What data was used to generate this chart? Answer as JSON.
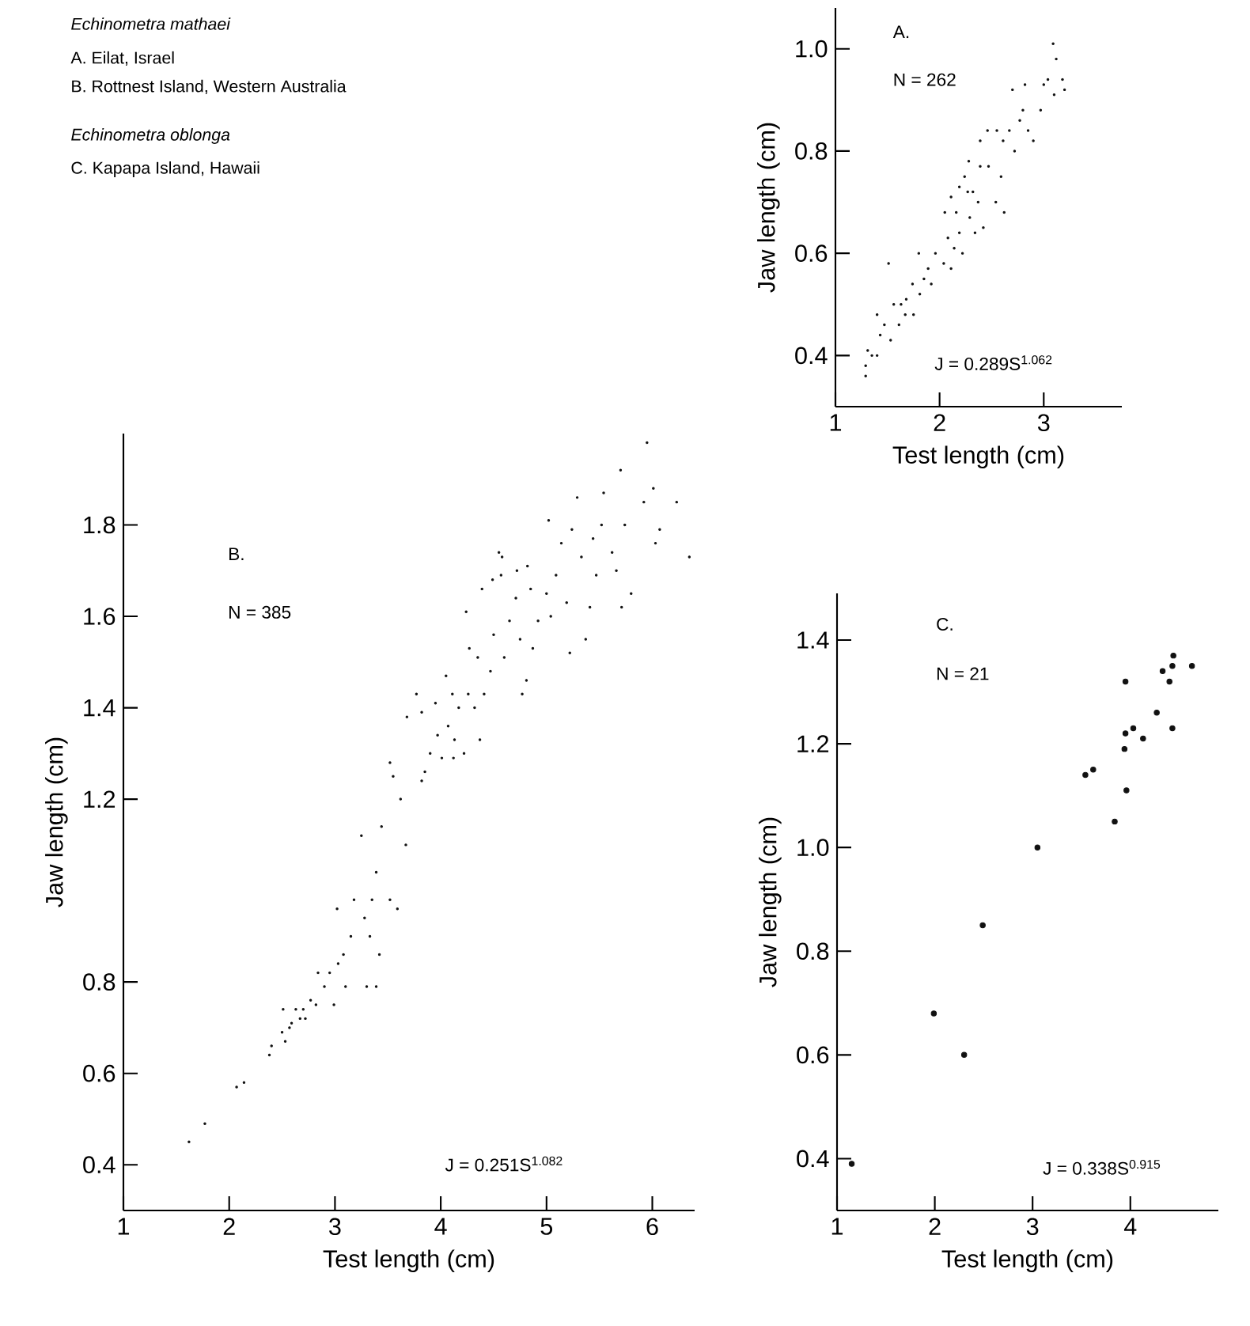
{
  "chart_data": [
    {
      "type": "other",
      "annotations": [
        "Echinometra mathaei",
        "A. Eilat, Israel",
        "B. Rottnest Island, Western Australia",
        "Echinometra oblonga",
        "C. Kapapa Island, Hawaii"
      ]
    },
    {
      "type": "scatter",
      "title": "A.",
      "xlabel": "Test length (cm)",
      "ylabel": "Jaw length (cm)",
      "annotations": [
        "N = 262",
        "J = 0.289S$^{1.062}$"
      ],
      "marker": "circle",
      "xlim": [
        1,
        3.75
      ],
      "ylim": [
        0.3,
        1.08
      ],
      "xticks": [
        1,
        2,
        3
      ],
      "yticks": [
        0.4,
        0.6,
        0.8,
        {
          "value": 1,
          "label": "1.0"
        }
      ],
      "x": [
        1.29,
        1.29,
        1.31,
        1.35,
        1.4,
        1.4,
        1.43,
        1.47,
        1.53,
        1.51,
        1.56,
        1.61,
        1.63,
        1.68,
        1.67,
        1.74,
        1.75,
        1.8,
        1.81,
        1.85,
        1.89,
        1.92,
        1.96,
        2.04,
        2.05,
        2.08,
        2.11,
        2.11,
        2.14,
        2.16,
        2.19,
        2.19,
        2.22,
        2.24,
        2.27,
        2.28,
        2.29,
        2.32,
        2.34,
        2.37,
        2.39,
        2.39,
        2.42,
        2.46,
        2.47,
        2.54,
        2.55,
        2.59,
        2.61,
        2.62,
        2.67,
        2.7,
        2.72,
        2.77,
        2.8,
        2.82,
        2.85,
        2.9,
        2.97,
        3.0,
        3.04,
        3.09,
        3.12,
        3.1,
        3.18,
        3.2
      ],
      "series": [
        {
          "color": "#111111",
          "values": [
            0.36,
            0.38,
            0.41,
            0.4,
            0.4,
            0.48,
            0.44,
            0.46,
            0.43,
            0.58,
            0.5,
            0.46,
            0.5,
            0.51,
            0.48,
            0.54,
            0.48,
            0.6,
            0.52,
            0.55,
            0.57,
            0.54,
            0.6,
            0.58,
            0.68,
            0.63,
            0.57,
            0.71,
            0.61,
            0.68,
            0.73,
            0.64,
            0.6,
            0.75,
            0.72,
            0.78,
            0.67,
            0.72,
            0.64,
            0.7,
            0.77,
            0.82,
            0.65,
            0.84,
            0.77,
            0.7,
            0.84,
            0.75,
            0.82,
            0.68,
            0.84,
            0.92,
            0.8,
            0.86,
            0.88,
            0.93,
            0.84,
            0.82,
            0.88,
            0.93,
            0.94,
            1.01,
            0.98,
            0.91,
            0.94,
            0.92
          ]
        }
      ]
    },
    {
      "type": "scatter",
      "title": "B.",
      "xlabel": "Test length (cm)",
      "ylabel": "Jaw length (cm)",
      "annotations": [
        "N = 385",
        "J = 0.251S$^{1.082}$"
      ],
      "marker": "circle",
      "xlim": [
        1,
        6.4
      ],
      "ylim": [
        0.3,
        2.0
      ],
      "xticks": [
        1,
        2,
        3,
        4,
        5,
        6
      ],
      "yticks": [
        0.4,
        0.6,
        0.8,
        1.2,
        1.4,
        1.6,
        1.8
      ],
      "x": [
        1.62,
        1.77,
        2.07,
        2.14,
        2.38,
        2.4,
        2.5,
        2.53,
        2.51,
        2.57,
        2.59,
        2.63,
        2.67,
        2.7,
        2.72,
        2.77,
        2.82,
        2.84,
        2.9,
        2.95,
        2.99,
        3.02,
        3.03,
        3.08,
        3.1,
        3.15,
        3.18,
        3.28,
        3.3,
        3.33,
        3.35,
        3.39,
        3.42,
        3.52,
        3.59,
        3.25,
        3.39,
        3.44,
        3.55,
        3.52,
        3.62,
        3.67,
        3.68,
        3.77,
        3.82,
        3.82,
        3.85,
        3.9,
        3.95,
        3.97,
        4.01,
        4.05,
        4.07,
        4.11,
        4.13,
        4.17,
        4.22,
        4.24,
        4.26,
        4.27,
        4.32,
        4.35,
        4.39,
        4.41,
        4.47,
        4.5,
        4.55,
        4.57,
        4.6,
        4.65,
        4.71,
        4.75,
        4.77,
        4.81,
        4.82,
        4.85,
        4.87,
        4.12,
        4.37,
        4.49,
        4.58,
        4.72,
        4.92,
        5.0,
        5.02,
        5.04,
        5.09,
        5.14,
        5.19,
        5.22,
        5.24,
        5.29,
        5.33,
        5.37,
        5.41,
        5.44,
        5.47,
        5.52,
        5.54,
        5.62,
        5.66,
        5.7,
        5.71,
        5.74,
        5.8,
        5.92,
        5.95,
        6.01,
        6.03,
        6.07,
        6.23,
        6.35
      ],
      "series": [
        {
          "color": "#111111",
          "values": [
            0.45,
            0.49,
            0.57,
            0.58,
            0.64,
            0.66,
            0.69,
            0.67,
            0.74,
            0.7,
            0.71,
            0.74,
            0.72,
            0.74,
            0.72,
            0.76,
            0.75,
            0.82,
            0.79,
            0.82,
            0.75,
            0.96,
            0.84,
            0.86,
            0.79,
            0.9,
            0.98,
            0.94,
            0.79,
            0.9,
            0.98,
            0.79,
            0.86,
            0.98,
            0.96,
            1.12,
            1.04,
            1.14,
            1.25,
            1.28,
            1.2,
            1.1,
            1.38,
            1.43,
            1.39,
            1.24,
            1.26,
            1.3,
            1.41,
            1.34,
            1.29,
            1.47,
            1.36,
            1.43,
            1.33,
            1.4,
            1.3,
            1.61,
            1.43,
            1.53,
            1.4,
            1.51,
            1.66,
            1.43,
            1.48,
            1.56,
            1.74,
            1.69,
            1.51,
            1.59,
            1.64,
            1.55,
            1.43,
            1.46,
            1.71,
            1.66,
            1.53,
            1.29,
            1.33,
            1.68,
            1.73,
            1.7,
            1.59,
            1.65,
            1.81,
            1.6,
            1.69,
            1.76,
            1.63,
            1.52,
            1.79,
            1.86,
            1.73,
            1.55,
            1.62,
            1.77,
            1.69,
            1.8,
            1.87,
            1.74,
            1.7,
            1.92,
            1.62,
            1.8,
            1.65,
            1.85,
            1.98,
            1.88,
            1.76,
            1.79,
            1.85,
            1.73
          ]
        }
      ]
    },
    {
      "type": "scatter",
      "title": "C.",
      "xlabel": "Test length (cm)",
      "ylabel": "Jaw length (cm)",
      "annotations": [
        "N = 21",
        "J = 0.338S$^{0.915}$"
      ],
      "marker": "circle",
      "xlim": [
        1,
        4.9
      ],
      "ylim": [
        0.3,
        1.49
      ],
      "xticks": [
        1,
        2,
        3,
        4
      ],
      "yticks": [
        0.4,
        0.6,
        0.8,
        {
          "value": 1,
          "label": "1.0"
        },
        1.2,
        1.4
      ],
      "x": [
        1.15,
        1.99,
        2.3,
        2.49,
        3.05,
        3.54,
        3.62,
        3.84,
        3.95,
        3.95,
        3.94,
        3.96,
        4.03,
        4.13,
        4.27,
        4.33,
        4.4,
        4.43,
        4.44,
        4.43,
        4.63
      ],
      "series": [
        {
          "color": "#111111",
          "values": [
            0.39,
            0.68,
            0.6,
            0.85,
            1.0,
            1.14,
            1.15,
            1.05,
            1.32,
            1.22,
            1.19,
            1.11,
            1.23,
            1.21,
            1.26,
            1.34,
            1.32,
            1.35,
            1.37,
            1.23,
            1.35
          ]
        }
      ]
    }
  ]
}
